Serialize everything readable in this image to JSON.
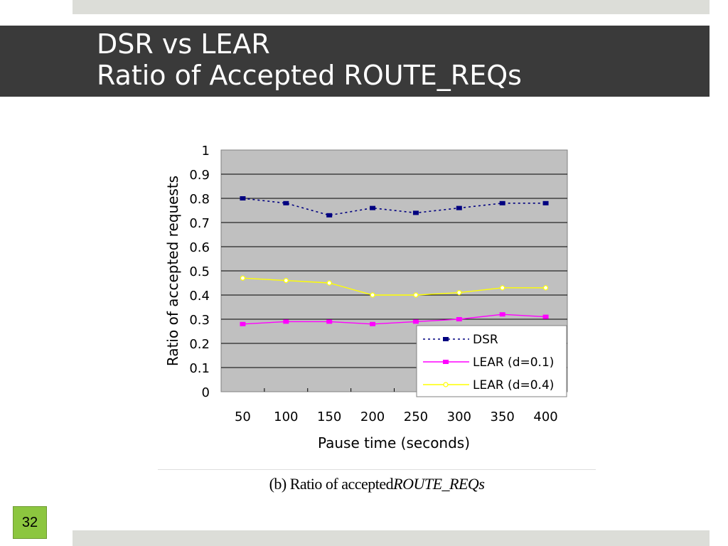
{
  "slide": {
    "title_line1": "DSR vs LEAR",
    "title_line2": "Ratio of Accepted ROUTE_REQs",
    "slide_number": "32",
    "caption_plain": "(b) Ratio of accepted",
    "caption_italic": "ROUTE_REQs"
  },
  "colors": {
    "title_bar": "#3a3a3a",
    "accent_strip": "#dcddd8",
    "slide_number_bg": "#8cc63f",
    "plot_bg": "#c0c0c0"
  },
  "chart_data": {
    "type": "line",
    "xlabel": "Pause time (seconds)",
    "ylabel": "Ratio of accepted requests",
    "categories": [
      "50",
      "100",
      "150",
      "200",
      "250",
      "300",
      "350",
      "400"
    ],
    "ylim": [
      0,
      1
    ],
    "yticks": [
      "0",
      "0.1",
      "0.2",
      "0.3",
      "0.4",
      "0.5",
      "0.6",
      "0.7",
      "0.8",
      "0.9",
      "1"
    ],
    "grid": true,
    "legend_position": "bottom-right",
    "series": [
      {
        "name": "DSR",
        "values": [
          0.8,
          0.78,
          0.73,
          0.76,
          0.74,
          0.76,
          0.78,
          0.78
        ],
        "color": "#000080",
        "style": "dotted",
        "marker": "square"
      },
      {
        "name": "LEAR (d=0.1)",
        "values": [
          0.28,
          0.29,
          0.29,
          0.28,
          0.29,
          0.3,
          0.32,
          0.31
        ],
        "color": "#ff00ff",
        "style": "solid",
        "marker": "square"
      },
      {
        "name": "LEAR (d=0.4)",
        "values": [
          0.47,
          0.46,
          0.45,
          0.4,
          0.4,
          0.41,
          0.43,
          0.43
        ],
        "color": "#ffff00",
        "style": "solid",
        "marker": "circle"
      }
    ]
  }
}
